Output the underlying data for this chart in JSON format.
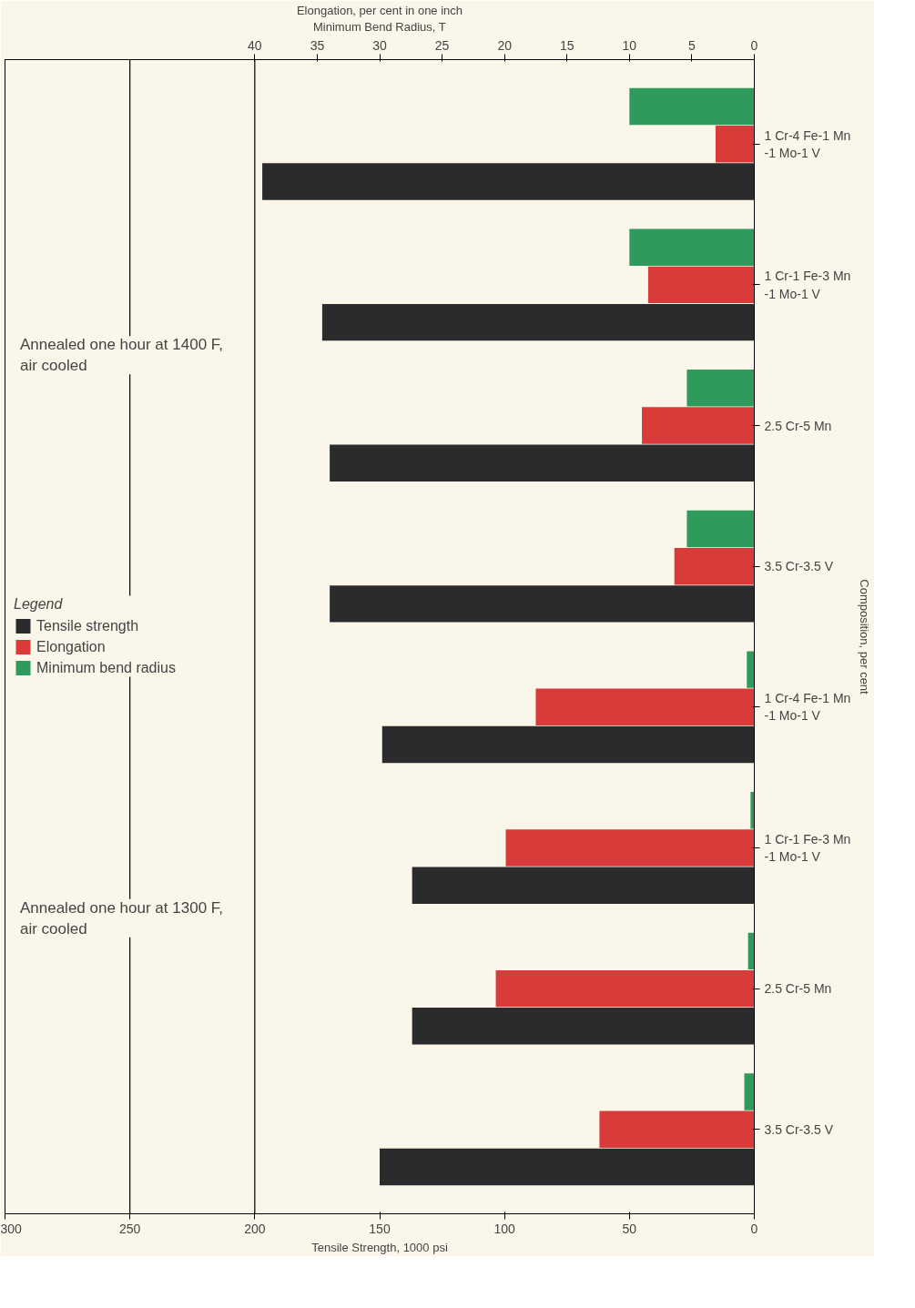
{
  "chart_data": {
    "type": "bar",
    "orientation": "horizontal",
    "categories": [
      "1 Cr-4 Fe-1 Mn\n-1 Mo-1 V",
      "1 Cr-1 Fe-3 Mn\n-1 Mo-1 V",
      "2.5 Cr-5 Mn",
      "3.5 Cr-3.5 V",
      "1 Cr-4 Fe-1 Mn\n-1 Mo-1 V",
      "1 Cr-1 Fe-3 Mn\n-1 Mo-1 V",
      "2.5 Cr-5 Mn",
      "3.5 Cr-3.5 V"
    ],
    "series": [
      {
        "name": "Tensile strength",
        "color": "#2b2b2e",
        "values": [
          197,
          173,
          170,
          170,
          149,
          137,
          137,
          150
        ]
      },
      {
        "name": "Elongation",
        "color": "#d93a3a",
        "values": [
          3.1,
          8.5,
          9.0,
          6.4,
          17.5,
          19.9,
          20.7,
          12.4
        ],
        "axis": "x2"
      },
      {
        "name": "Minimum bend radius",
        "color": "#2e9a5c",
        "values": [
          10,
          10,
          5.4,
          5.4,
          0.6,
          0.3,
          0.5,
          0.8
        ],
        "axis": "x2"
      }
    ],
    "xlim": [
      300,
      0
    ],
    "xticks": [
      0,
      50,
      100,
      150,
      200,
      250,
      300
    ],
    "x2lim": [
      60,
      0
    ],
    "x2ticks": [
      0,
      5,
      10,
      15,
      20,
      25,
      30,
      35,
      40
    ],
    "xlabel": "Tensile Strength, 1000 psi",
    "x2label": "Elongation, per cent in one inch\nMinimum Bend Radius, T",
    "ylabel": "Composition, per cent",
    "legend_title": "Legend",
    "legend": "left",
    "grid": false,
    "ref_lines": [
      {
        "axis": "x",
        "value": 250,
        "label": null
      },
      {
        "axis": "x",
        "value": 200,
        "label": null
      }
    ],
    "annotations": [
      "Annealed one hour at 1400 F,\nair cooled",
      "Annealed one hour at 1300 F,\nair cooled"
    ]
  }
}
